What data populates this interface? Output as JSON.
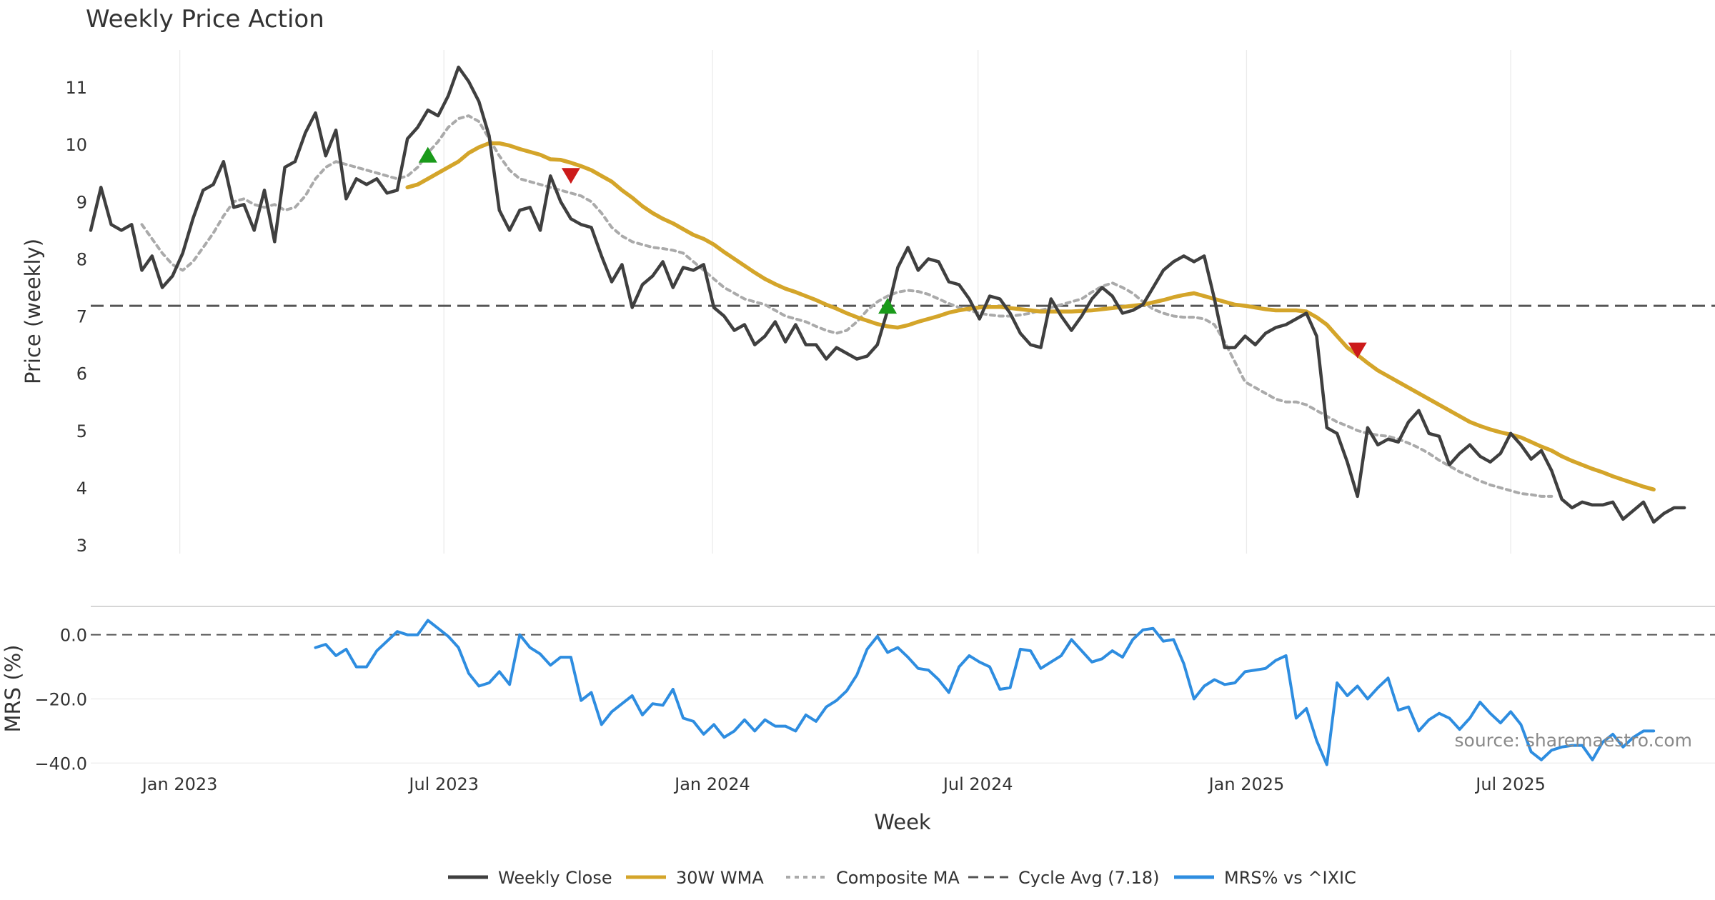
{
  "chart_data": {
    "type": "line",
    "title": "Weekly Price Action",
    "xlabel": "Week",
    "x_ticks": [
      "Jan 2023",
      "Jul 2023",
      "Jan 2024",
      "Jul 2024",
      "Jan 2025",
      "Jul 2025"
    ],
    "x_range": [
      "2022-11-01",
      "2025-11-18"
    ],
    "source": "source: sharemaestro.com",
    "colors": {
      "close": "#3f3f3f",
      "wma": "#d4a52a",
      "composite": "#aaaaaa",
      "cycle": "#555555",
      "mrs": "#2e8de0",
      "buy": "#1a9a1a",
      "sell": "#cc1a1a"
    },
    "legend_position": "bottom-center",
    "legend": [
      "Weekly Close",
      "30W WMA",
      "Composite MA",
      "Cycle Avg (7.18)",
      "MRS% vs ^IXIC"
    ],
    "price_panel": {
      "ylabel": "Price (weekly)",
      "ylim": [
        2.85,
        11.65
      ],
      "yticks": [
        "3",
        "4",
        "5",
        "6",
        "7",
        "8",
        "9",
        "10",
        "11"
      ],
      "grid": true,
      "cycle_avg": 7.18,
      "series": [
        {
          "name": "Weekly Close",
          "x_start": "2022-11-01",
          "step_days": 7,
          "values": [
            8.5,
            9.25,
            8.6,
            8.5,
            8.6,
            7.8,
            8.05,
            7.5,
            7.7,
            8.1,
            8.7,
            9.2,
            9.3,
            9.7,
            8.9,
            8.95,
            8.5,
            9.2,
            8.3,
            9.6,
            9.7,
            10.2,
            10.55,
            9.8,
            10.25,
            9.05,
            9.4,
            9.3,
            9.4,
            9.15,
            9.2,
            10.1,
            10.3,
            10.6,
            10.5,
            10.85,
            11.35,
            11.1,
            10.75,
            10.15,
            8.85,
            8.5,
            8.85,
            8.9,
            8.5,
            9.45,
            9.0,
            8.7,
            8.6,
            8.55,
            8.05,
            7.6,
            7.9,
            7.15,
            7.55,
            7.7,
            7.95,
            7.5,
            7.85,
            7.8,
            7.9,
            7.15,
            7.0,
            6.75,
            6.85,
            6.5,
            6.65,
            6.9,
            6.55,
            6.85,
            6.5,
            6.5,
            6.25,
            6.45,
            6.35,
            6.25,
            6.3,
            6.5,
            7.1,
            7.85,
            8.2,
            7.8,
            8.0,
            7.95,
            7.6,
            7.55,
            7.3,
            6.95,
            7.35,
            7.3,
            7.05,
            6.7,
            6.5,
            6.45,
            7.3,
            7.0,
            6.75,
            7.0,
            7.3,
            7.5,
            7.35,
            7.05,
            7.1,
            7.2,
            7.5,
            7.8,
            7.95,
            8.05,
            7.95,
            8.05,
            7.3,
            6.45,
            6.45,
            6.65,
            6.5,
            6.7,
            6.8,
            6.85,
            6.95,
            7.05,
            6.65,
            5.05,
            4.95,
            4.45,
            3.85,
            5.05,
            4.75,
            4.85,
            4.8,
            5.15,
            5.35,
            4.95,
            4.9,
            4.4,
            4.6,
            4.75,
            4.55,
            4.45,
            4.6,
            4.95,
            4.75,
            4.5,
            4.65,
            4.3,
            3.8,
            3.65,
            3.75,
            3.7,
            3.7,
            3.75,
            3.45,
            3.6,
            3.75,
            3.4,
            3.55,
            3.65,
            3.65
          ]
        },
        {
          "name": "30W WMA",
          "x_start": "2023-06-06",
          "step_days": 7,
          "values": [
            9.25,
            9.3,
            9.4,
            9.5,
            9.6,
            9.7,
            9.85,
            9.95,
            10.02,
            10.02,
            9.98,
            9.92,
            9.87,
            9.82,
            9.74,
            9.73,
            9.68,
            9.62,
            9.55,
            9.45,
            9.35,
            9.2,
            9.07,
            8.92,
            8.8,
            8.7,
            8.62,
            8.52,
            8.42,
            8.35,
            8.25,
            8.12,
            8.0,
            7.88,
            7.76,
            7.65,
            7.56,
            7.48,
            7.42,
            7.35,
            7.28,
            7.2,
            7.13,
            7.05,
            6.98,
            6.92,
            6.86,
            6.82,
            6.8,
            6.84,
            6.9,
            6.95,
            7.0,
            7.06,
            7.1,
            7.13,
            7.15,
            7.16,
            7.16,
            7.14,
            7.12,
            7.1,
            7.08,
            7.08,
            7.08,
            7.08,
            7.09,
            7.1,
            7.12,
            7.14,
            7.16,
            7.18,
            7.2,
            7.24,
            7.28,
            7.33,
            7.37,
            7.4,
            7.35,
            7.3,
            7.25,
            7.2,
            7.18,
            7.15,
            7.12,
            7.1,
            7.1,
            7.1,
            7.08,
            6.98,
            6.85,
            6.65,
            6.45,
            6.32,
            6.18,
            6.05,
            5.95,
            5.85,
            5.75,
            5.65,
            5.55,
            5.45,
            5.35,
            5.25,
            5.15,
            5.08,
            5.02,
            4.97,
            4.93,
            4.88,
            4.8,
            4.72,
            4.65,
            4.55,
            4.47,
            4.4,
            4.33,
            4.27,
            4.2,
            4.14,
            4.08,
            4.02,
            3.97
          ]
        },
        {
          "name": "Composite MA",
          "x_start": "2022-12-06",
          "step_days": 7,
          "values": [
            8.6,
            8.35,
            8.1,
            7.9,
            7.8,
            7.95,
            8.2,
            8.45,
            8.75,
            9.0,
            9.05,
            8.95,
            8.9,
            8.95,
            8.85,
            8.9,
            9.1,
            9.4,
            9.6,
            9.7,
            9.65,
            9.6,
            9.55,
            9.5,
            9.45,
            9.4,
            9.45,
            9.6,
            9.85,
            10.05,
            10.3,
            10.45,
            10.5,
            10.4,
            10.1,
            9.8,
            9.55,
            9.4,
            9.35,
            9.3,
            9.25,
            9.2,
            9.15,
            9.1,
            9.0,
            8.8,
            8.55,
            8.4,
            8.3,
            8.25,
            8.2,
            8.18,
            8.15,
            8.1,
            7.95,
            7.8,
            7.65,
            7.5,
            7.4,
            7.3,
            7.25,
            7.2,
            7.1,
            7.0,
            6.95,
            6.9,
            6.82,
            6.75,
            6.7,
            6.75,
            6.9,
            7.1,
            7.25,
            7.35,
            7.42,
            7.45,
            7.43,
            7.38,
            7.3,
            7.22,
            7.15,
            7.1,
            7.05,
            7.02,
            7.0,
            7.0,
            7.02,
            7.05,
            7.1,
            7.15,
            7.2,
            7.25,
            7.3,
            7.42,
            7.52,
            7.58,
            7.5,
            7.4,
            7.25,
            7.12,
            7.05,
            7.0,
            6.98,
            6.98,
            6.95,
            6.85,
            6.55,
            6.2,
            5.85,
            5.75,
            5.65,
            5.55,
            5.5,
            5.5,
            5.45,
            5.35,
            5.25,
            5.15,
            5.08,
            5.0,
            4.95,
            4.92,
            4.9,
            4.85,
            4.78,
            4.7,
            4.6,
            4.48,
            4.38,
            4.28,
            4.2,
            4.12,
            4.05,
            4.0,
            3.95,
            3.9,
            3.88,
            3.85,
            3.85
          ]
        }
      ],
      "markers": [
        {
          "type": "buy",
          "x": "2023-06-20",
          "y": 9.82
        },
        {
          "type": "sell",
          "x": "2023-09-26",
          "y": 9.45
        },
        {
          "type": "buy",
          "x": "2024-04-30",
          "y": 7.18
        },
        {
          "type": "sell",
          "x": "2025-03-18",
          "y": 6.4
        }
      ]
    },
    "mrs_panel": {
      "ylabel": "MRS (%)",
      "ylim": [
        -41.5,
        7.5
      ],
      "yticks": [
        "0.0",
        "−20.0",
        "−40.0"
      ],
      "zero_line": 0,
      "grid": true,
      "series": [
        {
          "name": "MRS% vs ^IXIC",
          "x_start": "2023-04-04",
          "step_days": 7,
          "values": [
            -4.0,
            -3.0,
            -6.5,
            -4.5,
            -10.0,
            -10.0,
            -5.0,
            -2.0,
            1.0,
            0.0,
            0.0,
            4.5,
            2.0,
            -0.5,
            -4.0,
            -12.0,
            -16.0,
            -15.0,
            -11.5,
            -15.5,
            0.0,
            -4.0,
            -6.0,
            -9.5,
            -7.0,
            -7.0,
            -20.5,
            -18.0,
            -28.0,
            -24.0,
            -21.5,
            -19.0,
            -25.0,
            -21.5,
            -22.0,
            -17.0,
            -26.0,
            -27.0,
            -31.0,
            -28.0,
            -32.0,
            -30.0,
            -26.5,
            -30.0,
            -26.5,
            -28.5,
            -28.5,
            -30.0,
            -25.0,
            -27.0,
            -22.5,
            -20.5,
            -17.5,
            -12.5,
            -4.5,
            -0.5,
            -5.5,
            -4.0,
            -7.0,
            -10.5,
            -11.0,
            -14.0,
            -18.0,
            -10.0,
            -6.5,
            -8.5,
            -10.0,
            -17.0,
            -16.5,
            -4.5,
            -5.0,
            -10.5,
            -8.5,
            -6.5,
            -1.5,
            -5.0,
            -8.5,
            -7.5,
            -5.0,
            -7.0,
            -1.5,
            1.5,
            2.0,
            -2.0,
            -1.5,
            -9.0,
            -20.0,
            -16.0,
            -14.0,
            -15.5,
            -15.0,
            -11.5,
            -11.0,
            -10.5,
            -8.0,
            -6.5,
            -26.0,
            -23.0,
            -33.0,
            -40.5,
            -15.0,
            -19.0,
            -16.0,
            -20.0,
            -16.5,
            -13.5,
            -23.5,
            -22.5,
            -30.0,
            -26.5,
            -24.5,
            -26.0,
            -29.5,
            -26.0,
            -21.0,
            -24.5,
            -27.5,
            -24.0,
            -28.0,
            -36.5,
            -39.0,
            -36.0,
            -35.0,
            -34.5,
            -34.5,
            -39.0,
            -33.5,
            -31.0,
            -35.0,
            -32.0,
            -30.0,
            -30.0
          ]
        }
      ]
    }
  }
}
